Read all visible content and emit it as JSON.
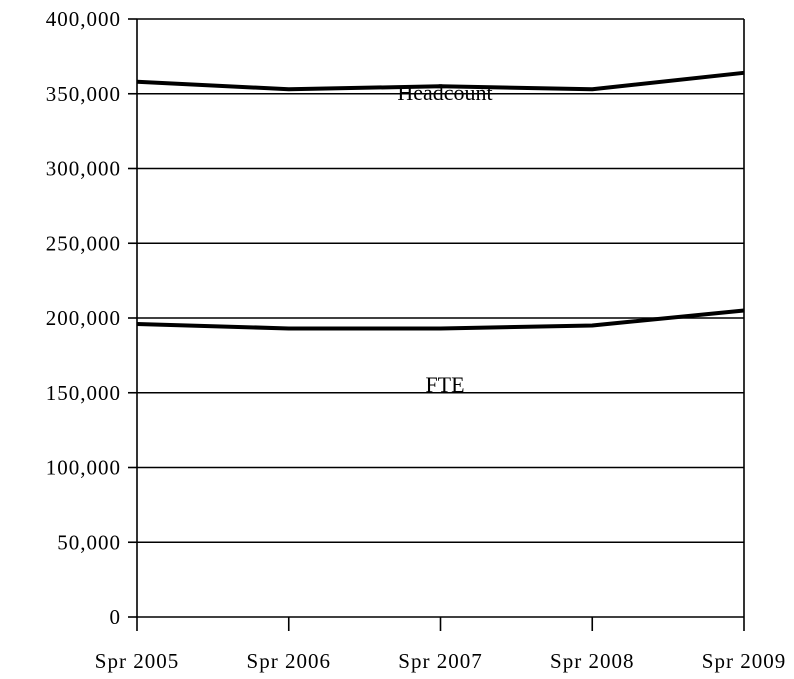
{
  "chart_data": {
    "type": "line",
    "title": "",
    "xlabel": "",
    "ylabel": "",
    "categories": [
      "Spr 2005",
      "Spr 2006",
      "Spr 2007",
      "Spr 2008",
      "Spr 2009"
    ],
    "ylim": [
      0,
      400000
    ],
    "yticks": [
      0,
      50000,
      100000,
      150000,
      200000,
      250000,
      300000,
      350000,
      400000
    ],
    "ytick_labels": [
      "0",
      "50,000",
      "100,000",
      "150,000",
      "200,000",
      "250,000",
      "300,000",
      "350,000",
      "400,000"
    ],
    "grid": true,
    "legend": "none",
    "series": [
      {
        "name": "Headcount",
        "values": [
          358000,
          353000,
          355000,
          353000,
          364000
        ],
        "color": "#000000"
      },
      {
        "name": "FTE",
        "values": [
          196000,
          193000,
          193000,
          195000,
          205000
        ],
        "color": "#000000"
      }
    ]
  }
}
